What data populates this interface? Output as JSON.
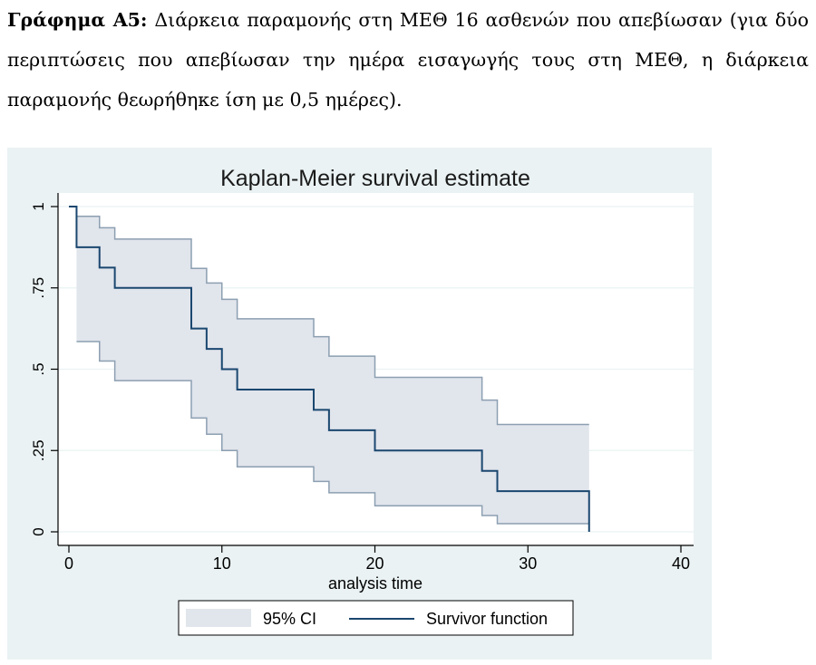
{
  "caption": {
    "label": "Γράφημα Α5:",
    "text": "Διάρκεια παραμονής στη ΜΕΘ 16 ασθενών που απεβίωσαν (για δύο περιπτώσεις που απεβίωσαν την ημέρα εισαγωγής τους στη ΜΕΘ, η διάρκεια παραμονής θεωρήθηκε ίση με 0,5 ημέρες)."
  },
  "colors": {
    "background": "#eaf2f3",
    "plot_area": "#ffffff",
    "ci_fill": "#e1e5ec",
    "ci_line": "#8c9fb1",
    "survivor_line": "#1a476f",
    "grid": "#eaf2f3",
    "axis": "#000000"
  },
  "chart_data": {
    "type": "line",
    "title": "Kaplan-Meier survival estimate",
    "xlabel": "analysis time",
    "ylabel": "",
    "xlim": [
      0,
      40
    ],
    "ylim": [
      0,
      1
    ],
    "xticks": [
      0,
      10,
      20,
      30,
      40
    ],
    "xtick_labels": [
      "0",
      "10",
      "20",
      "30",
      "40"
    ],
    "yticks": [
      0,
      0.25,
      0.5,
      0.75,
      1
    ],
    "ytick_labels": [
      "0",
      ".25",
      ".5",
      ".75",
      "1"
    ],
    "grid": true,
    "legend_position": "bottom",
    "series": [
      {
        "name": "Survivor function",
        "style": "step",
        "x": [
          0,
          0.5,
          2,
          3,
          8,
          9,
          10,
          11,
          16,
          17,
          20,
          27,
          28,
          34,
          34
        ],
        "y": [
          1,
          0.875,
          0.8125,
          0.75,
          0.625,
          0.5625,
          0.5,
          0.4375,
          0.375,
          0.3125,
          0.25,
          0.1875,
          0.125,
          0.125,
          0
        ]
      },
      {
        "name": "95% CI",
        "style": "band",
        "x": [
          0.5,
          2,
          3,
          8,
          9,
          10,
          11,
          16,
          17,
          20,
          27,
          28,
          34
        ],
        "upper": [
          0.97,
          0.935,
          0.9,
          0.81,
          0.765,
          0.715,
          0.655,
          0.6,
          0.54,
          0.475,
          0.405,
          0.33,
          0.33
        ],
        "lower": [
          0.585,
          0.525,
          0.465,
          0.35,
          0.3,
          0.25,
          0.2,
          0.155,
          0.12,
          0.08,
          0.05,
          0.025,
          0.025
        ]
      }
    ],
    "legend": [
      "95% CI",
      "Survivor function"
    ]
  }
}
